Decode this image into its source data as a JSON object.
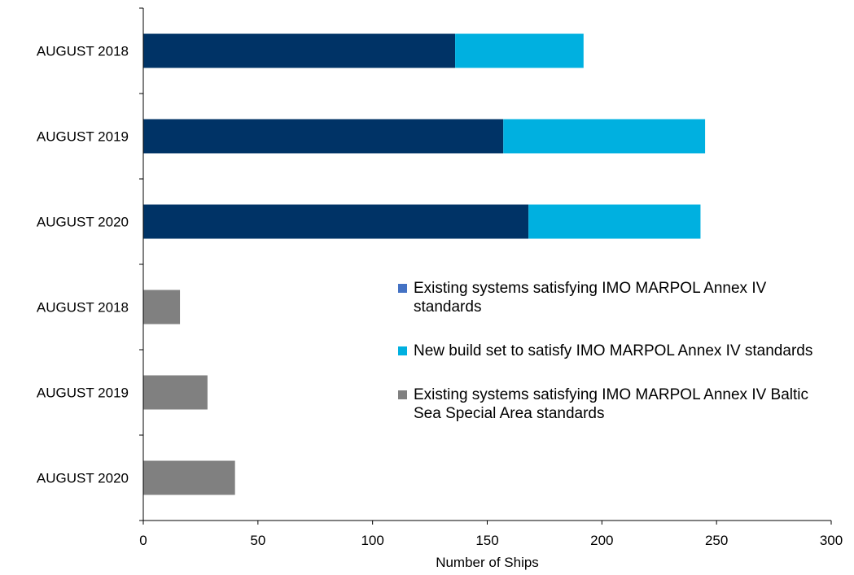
{
  "chart_data": {
    "type": "bar",
    "orientation": "horizontal",
    "stacked": true,
    "categories": [
      "AUGUST 2018",
      "AUGUST 2019",
      "AUGUST 2020",
      "AUGUST 2018",
      "AUGUST 2019",
      "AUGUST 2020"
    ],
    "series": [
      {
        "name": "Existing systems satisfying IMO MARPOL Annex IV standards",
        "legend_color": "#4472c4",
        "bar_color": "#003366",
        "values": [
          136,
          157,
          168,
          0,
          0,
          0
        ]
      },
      {
        "name": "New build set to satisfy IMO MARPOL Annex IV standards",
        "legend_color": "#00b0e0",
        "bar_color": "#00b0e0",
        "values": [
          56,
          88,
          75,
          0,
          0,
          0
        ]
      },
      {
        "name": "Existing systems satisfying IMO MARPOL Annex IV Baltic Sea Special Area standards",
        "legend_color": "#808080",
        "bar_color": "#808080",
        "values": [
          0,
          0,
          0,
          16,
          28,
          40
        ]
      }
    ],
    "xlabel": "Number of Ships",
    "ylabel": "",
    "xlim": [
      0,
      300
    ],
    "xticks": [
      "0",
      "50",
      "100",
      "150",
      "200",
      "250",
      "300"
    ],
    "grid": false,
    "legend_position": "right"
  }
}
